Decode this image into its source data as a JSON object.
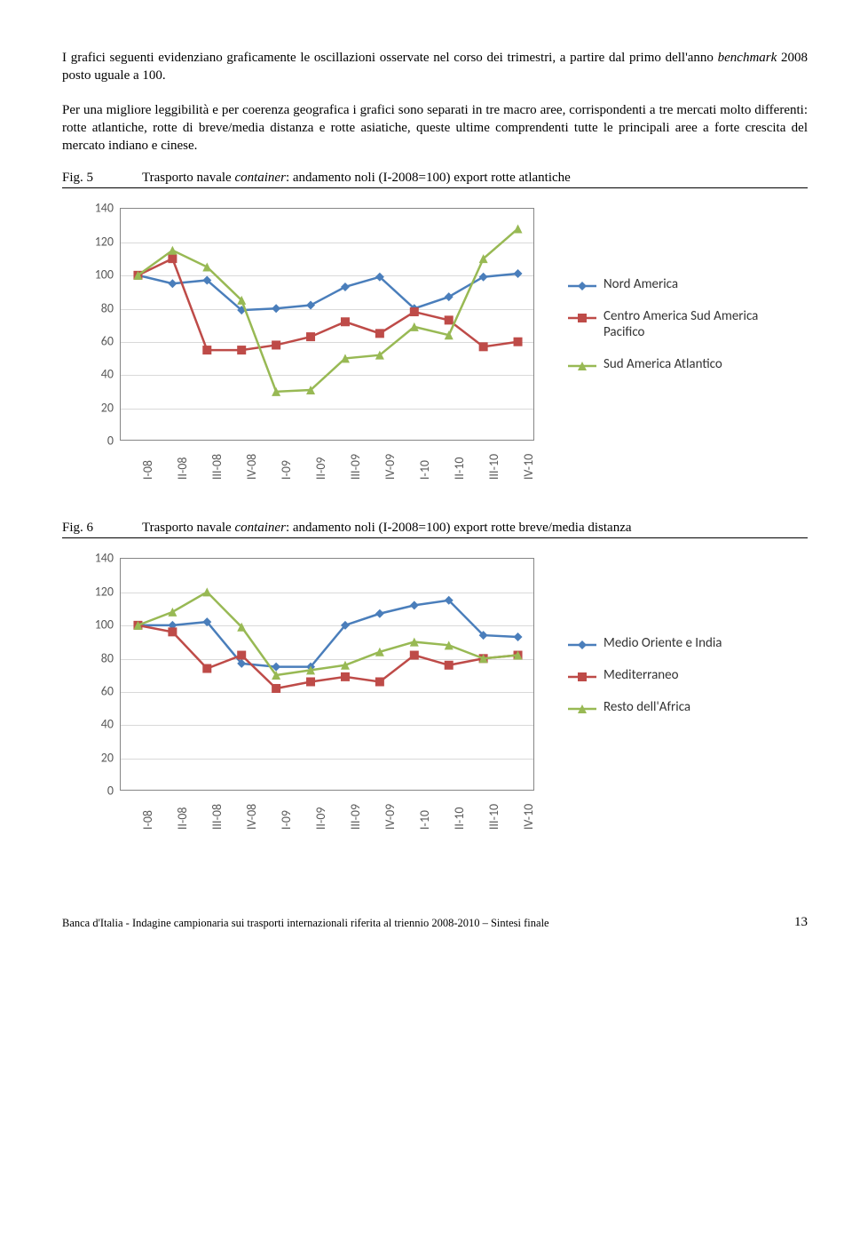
{
  "paragraph1": "I grafici seguenti evidenziano graficamente le oscillazioni osservate nel corso dei trimestri, a partire dal primo dell'anno ",
  "paragraph1_italic": "benchmark",
  "paragraph1_cont": " 2008 posto uguale a 100.",
  "paragraph2": "Per una migliore leggibilità e per coerenza geografica i grafici sono separati in tre macro aree, corrispondenti a tre mercati molto differenti: rotte atlantiche, rotte di breve/media distanza e rotte asiatiche, queste ultime comprendenti tutte le principali aree a forte crescita del mercato indiano e cinese.",
  "fig5": {
    "label": "Fig. 5",
    "title_a": "Trasporto navale ",
    "title_italic": "container",
    "title_b": ": andamento noli (I-2008=100) export rotte atlantiche"
  },
  "fig6": {
    "label": "Fig. 6",
    "title_a": "Trasporto navale ",
    "title_italic": "container",
    "title_b": ": andamento noli (I-2008=100) export rotte breve/media distanza"
  },
  "chart5": {
    "ylim": [
      0,
      140
    ],
    "ytick_step": 20,
    "xlabels": [
      "I-08",
      "II-08",
      "III-08",
      "IV-08",
      "I-09",
      "II-09",
      "III-09",
      "IV-09",
      "I-10",
      "II-10",
      "III-10",
      "IV-10"
    ],
    "grid_color": "#d9d9d9",
    "border_color": "#868686",
    "series": [
      {
        "name": "Nord America",
        "color": "#4a7ebb",
        "marker": "diamond",
        "values": [
          100,
          95,
          97,
          79,
          80,
          82,
          93,
          99,
          80,
          87,
          99,
          101
        ]
      },
      {
        "name": "Centro America Sud America Pacifico",
        "color": "#be4b48",
        "marker": "square",
        "values": [
          100,
          110,
          55,
          55,
          58,
          63,
          72,
          65,
          78,
          73,
          57,
          60
        ]
      },
      {
        "name": "Sud America Atlantico",
        "color": "#98b954",
        "marker": "triangle",
        "values": [
          100,
          115,
          105,
          85,
          30,
          31,
          50,
          52,
          69,
          64,
          110,
          128
        ]
      }
    ]
  },
  "chart6": {
    "ylim": [
      0,
      140
    ],
    "ytick_step": 20,
    "xlabels": [
      "I-08",
      "II-08",
      "III-08",
      "IV-08",
      "I-09",
      "II-09",
      "III-09",
      "IV-09",
      "I-10",
      "II-10",
      "III-10",
      "IV-10"
    ],
    "grid_color": "#d9d9d9",
    "border_color": "#868686",
    "series": [
      {
        "name": "Medio Oriente e India",
        "color": "#4a7ebb",
        "marker": "diamond",
        "values": [
          100,
          100,
          102,
          77,
          75,
          75,
          100,
          107,
          112,
          115,
          94,
          93
        ]
      },
      {
        "name": "Mediterraneo",
        "color": "#be4b48",
        "marker": "square",
        "values": [
          100,
          96,
          74,
          82,
          62,
          66,
          69,
          66,
          82,
          76,
          80,
          82
        ]
      },
      {
        "name": "Resto dell'Africa",
        "color": "#98b954",
        "marker": "triangle",
        "values": [
          100,
          108,
          120,
          99,
          70,
          73,
          76,
          84,
          90,
          88,
          80,
          82
        ]
      }
    ]
  },
  "footer": {
    "text": "Banca d'Italia - Indagine campionaria sui trasporti internazionali riferita al triennio 2008-2010 – Sintesi finale",
    "page": "13"
  }
}
